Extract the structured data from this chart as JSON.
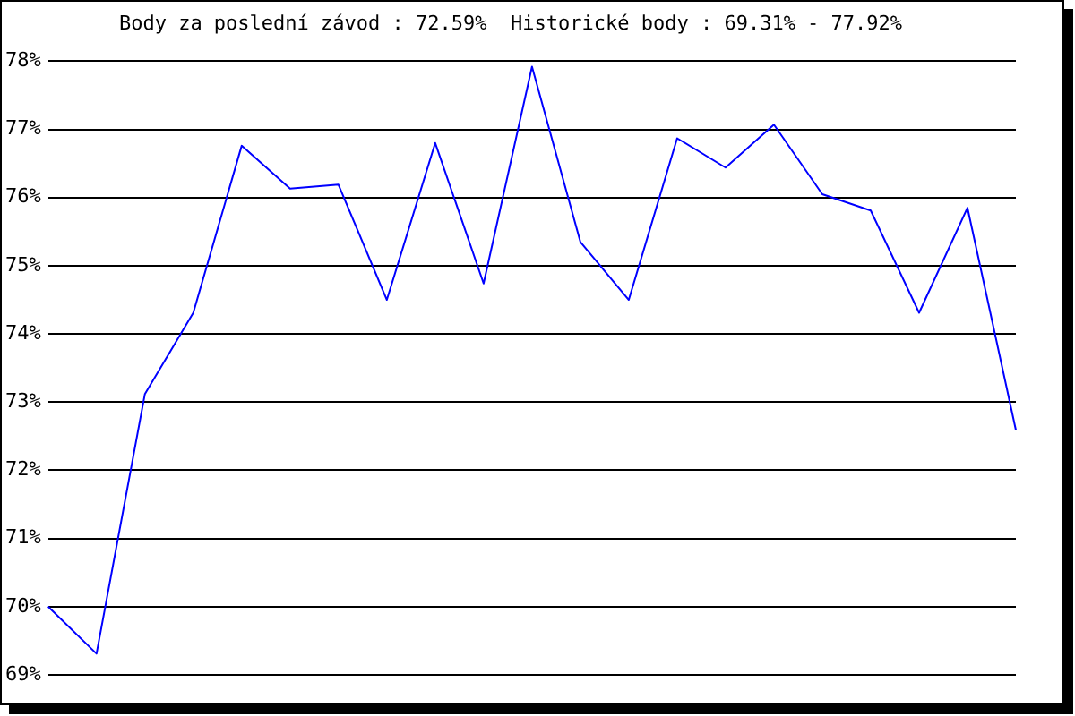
{
  "chart_data": {
    "type": "line",
    "title": "Body za poslední závod : 72.59%  Historické body : 69.31% - 77.92%",
    "categories": [
      null,
      null,
      null,
      null,
      null,
      null,
      null,
      null,
      null,
      null,
      null,
      null,
      null,
      null,
      null,
      null,
      null,
      null,
      null,
      null,
      null
    ],
    "series": [
      {
        "color": "#0000ff",
        "values": [
          70.0,
          69.31,
          73.12,
          74.31,
          76.76,
          76.13,
          76.19,
          74.5,
          76.8,
          74.74,
          77.92,
          75.35,
          74.5,
          76.87,
          76.44,
          77.07,
          76.05,
          75.81,
          74.31,
          75.85,
          72.59
        ]
      }
    ],
    "ylim": [
      69,
      78
    ],
    "yticks": [
      {
        "value": 69,
        "label": "69%"
      },
      {
        "value": 70,
        "label": "70%"
      },
      {
        "value": 71,
        "label": "71%"
      },
      {
        "value": 72,
        "label": "72%"
      },
      {
        "value": 73,
        "label": "73%"
      },
      {
        "value": 74,
        "label": "74%"
      },
      {
        "value": 75,
        "label": "75%"
      },
      {
        "value": 76,
        "label": "76%"
      },
      {
        "value": 77,
        "label": "77%"
      },
      {
        "value": 78,
        "label": "78%"
      }
    ],
    "grid": "y",
    "legend": false,
    "marker": "none",
    "line_style": "solid",
    "tick_labels": "y"
  }
}
